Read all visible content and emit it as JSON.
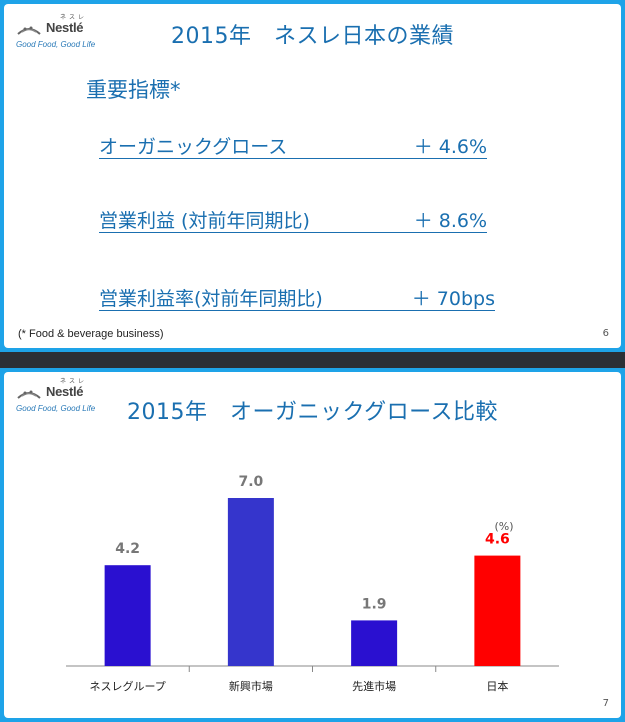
{
  "brand": {
    "name": "Nestlé",
    "kana": "ネスレ",
    "tagline": "Good Food, Good Life"
  },
  "slide1": {
    "title": "2015年　ネスレ日本の業績",
    "heading": "重要指標*",
    "kpis": [
      {
        "label": "オーガニックグロース",
        "value": "＋ 4.6%"
      },
      {
        "label": "営業利益 (対前年同期比)",
        "value": "＋ 8.6%"
      },
      {
        "label": "営業利益率(対前年同期比)",
        "value": "＋ 70bps"
      }
    ],
    "footnote": "(* Food & beverage business)",
    "page": "6"
  },
  "slide2": {
    "title": "2015年　オーガニックグロース比較",
    "page": "7"
  },
  "chart_data": {
    "type": "bar",
    "title": "2015年　オーガニックグロース比較",
    "unit": "(%)",
    "categories": [
      "ネスレグループ",
      "新興市場",
      "先進市場",
      "日本"
    ],
    "values": [
      4.2,
      7.0,
      1.9,
      4.6
    ],
    "value_labels": [
      "4.2",
      "7.0",
      "1.9",
      "4.6"
    ],
    "colors": [
      "#2a10d0",
      "#3535cc",
      "#2a10d0",
      "#ff0000"
    ],
    "label_colors": [
      "#777777",
      "#777777",
      "#777777",
      "#ff0000"
    ],
    "ylim": [
      0,
      7.0
    ],
    "grid": false
  }
}
